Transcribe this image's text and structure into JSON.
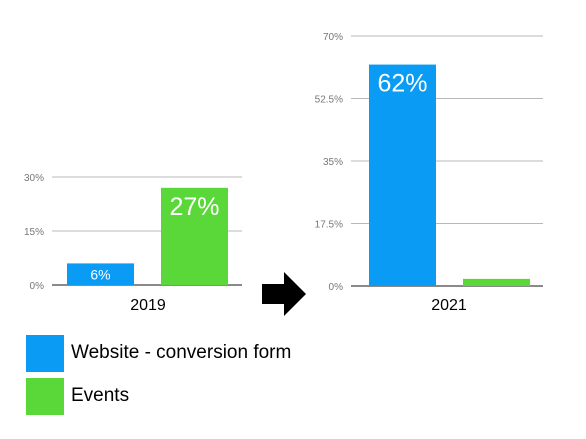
{
  "chart_data": [
    {
      "type": "bar",
      "categories": [
        "2019"
      ],
      "series": [
        {
          "name": "Website - conversion form",
          "values": [
            6
          ]
        },
        {
          "name": "Events",
          "values": [
            27
          ]
        }
      ],
      "data_labels": [
        "6%",
        "27%"
      ],
      "ylim": [
        0,
        30
      ],
      "yticks": [
        "0%",
        "15%",
        "30%"
      ],
      "ytick_values": [
        0,
        15,
        30
      ],
      "grid": true,
      "title": "",
      "xlabel": "",
      "ylabel": ""
    },
    {
      "type": "bar",
      "categories": [
        "2021"
      ],
      "series": [
        {
          "name": "Website - conversion form",
          "values": [
            62
          ]
        },
        {
          "name": "Events",
          "values": [
            2
          ]
        }
      ],
      "data_labels": [
        "62%",
        ""
      ],
      "ylim": [
        0,
        70
      ],
      "yticks": [
        "0%",
        "17.5%",
        "35%",
        "52.5%",
        "70%"
      ],
      "ytick_values": [
        0,
        17.5,
        35,
        52.5,
        70
      ],
      "grid": true,
      "title": "",
      "xlabel": "",
      "ylabel": ""
    }
  ],
  "legend": {
    "placement": "bottom-left",
    "items": [
      {
        "label": "Website - conversion form",
        "color": "#0a9bf5"
      },
      {
        "label": "Events",
        "color": "#5ad83a"
      }
    ]
  },
  "colors": {
    "website": "#0a9bf5",
    "events": "#5ad83a",
    "grid": "#b8b8b8",
    "axis": "#444444",
    "tick_text": "#777777",
    "arrow": "#000000"
  },
  "arrow_icon": "right-arrow-icon"
}
